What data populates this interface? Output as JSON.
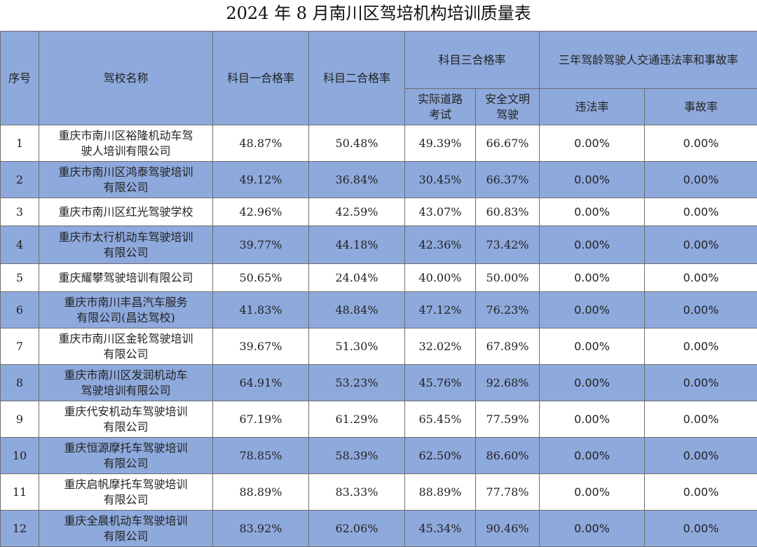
{
  "title": "2024 年 8 月南川区驾培机构培训质量表",
  "headers": {
    "seq": "序号",
    "school": "驾校名称",
    "subject1": "科目一合格率",
    "subject2": "科目二合格率",
    "subject3": "科目三合格率",
    "subject3_road": "实际道路\n考试",
    "subject3_safe": "安全文明\n驾驶",
    "three_year": "三年驾龄驾驶人交通违法率和事故率",
    "violation": "违法率",
    "accident": "事故率"
  },
  "rows": [
    {
      "seq": "1",
      "name": "重庆市南川区裕隆机动车驾\n驶人培训有限公司",
      "s1": "48.87%",
      "s2": "50.48%",
      "road": "49.39%",
      "safe": "66.67%",
      "violation": "0.00%",
      "accident": "0.00%"
    },
    {
      "seq": "2",
      "name": "重庆市南川区鸿泰驾驶培训\n有限公司",
      "s1": "49.12%",
      "s2": "36.84%",
      "road": "30.45%",
      "safe": "66.37%",
      "violation": "0.00%",
      "accident": "0.00%"
    },
    {
      "seq": "3",
      "name": "重庆市南川区红光驾驶学校",
      "s1": "42.96%",
      "s2": "42.59%",
      "road": "43.07%",
      "safe": "60.83%",
      "violation": "0.00%",
      "accident": "0.00%"
    },
    {
      "seq": "4",
      "name": "重庆市太行机动车驾驶培训\n有限公司",
      "s1": "39.77%",
      "s2": "44.18%",
      "road": "42.36%",
      "safe": "73.42%",
      "violation": "0.00%",
      "accident": "0.00%"
    },
    {
      "seq": "5",
      "name": "重庆耀攀驾驶培训有限公司",
      "s1": "50.65%",
      "s2": "24.04%",
      "road": "40.00%",
      "safe": "50.00%",
      "violation": "0.00%",
      "accident": "0.00%"
    },
    {
      "seq": "6",
      "name": "重庆市南川丰昌汽车服务\n有限公司(昌达驾校)",
      "s1": "41.83%",
      "s2": "48.84%",
      "road": "47.12%",
      "safe": "76.23%",
      "violation": "0.00%",
      "accident": "0.00%"
    },
    {
      "seq": "7",
      "name": "重庆市南川区金轮驾驶培训\n有限公司",
      "s1": "39.67%",
      "s2": "51.30%",
      "road": "32.02%",
      "safe": "67.89%",
      "violation": "0.00%",
      "accident": "0.00%"
    },
    {
      "seq": "8",
      "name": "重庆市南川区发润机动车\n驾驶培训有限公司",
      "s1": "64.91%",
      "s2": "53.23%",
      "road": "45.76%",
      "safe": "92.68%",
      "violation": "0.00%",
      "accident": "0.00%"
    },
    {
      "seq": "9",
      "name": "重庆代安机动车驾驶培训\n有限公司",
      "s1": "67.19%",
      "s2": "61.29%",
      "road": "65.45%",
      "safe": "77.59%",
      "violation": "0.00%",
      "accident": "0.00%"
    },
    {
      "seq": "10",
      "name": "重庆恒源摩托车驾驶培训\n有限公司",
      "s1": "78.85%",
      "s2": "58.39%",
      "road": "62.50%",
      "safe": "86.60%",
      "violation": "0.00%",
      "accident": "0.00%"
    },
    {
      "seq": "11",
      "name": "重庆启帆摩托车驾驶培训\n有限公司",
      "s1": "88.89%",
      "s2": "83.33%",
      "road": "88.89%",
      "safe": "77.78%",
      "violation": "0.00%",
      "accident": "0.00%"
    },
    {
      "seq": "12",
      "name": "重庆全晨机动车驾驶培训\n有限公司",
      "s1": "83.92%",
      "s2": "62.06%",
      "road": "45.34%",
      "safe": "90.46%",
      "violation": "0.00%",
      "accident": "0.00%"
    }
  ]
}
